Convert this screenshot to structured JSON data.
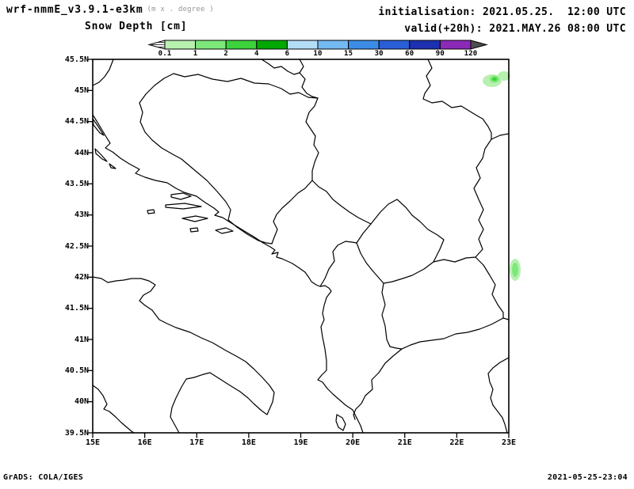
{
  "header": {
    "model": "wrf-nmmE_v3.9.1-e3km",
    "units_note": "(m x . degree )",
    "variable": "Snow Depth [cm]",
    "init": "initialisation: 2021.05.25.  12:00 UTC",
    "valid": "valid(+20h): 2021.MAY.26 08:00 UTC"
  },
  "colorbar": {
    "labels": [
      "0.1",
      "1",
      "2",
      "4",
      "6",
      "10",
      "15",
      "30",
      "60",
      "90",
      "120"
    ],
    "colors": [
      "#b8f0b0",
      "#7de87a",
      "#3cd23c",
      "#00a800",
      "#b4ddf7",
      "#74baf2",
      "#3c8ce6",
      "#2a5ed7",
      "#1c30b0",
      "#8c2ab8"
    ],
    "underflow_color": "#ffffff",
    "overflow_color": "#4d4d4d"
  },
  "axes": {
    "y_ticks": [
      "45.5N",
      "45N",
      "44.5N",
      "44N",
      "43.5N",
      "43N",
      "42.5N",
      "42N",
      "41.5N",
      "41N",
      "40.5N",
      "40N",
      "39.5N"
    ],
    "x_ticks": [
      "15E",
      "16E",
      "17E",
      "18E",
      "19E",
      "20E",
      "21E",
      "22E",
      "23E"
    ]
  },
  "map": {
    "region": "Adriatic / Balkans 15E-23E 39.5N-45.5N",
    "snow_patches": [
      {
        "name": "snow-patch-northeast",
        "approx_location": "22.7E 45.2N",
        "value_range_cm": "0.1-4"
      },
      {
        "name": "snow-patch-east-edge",
        "approx_location": "23E 42.2N",
        "value_range_cm": "0.1-2"
      }
    ]
  },
  "footer": {
    "left": "GrADS: COLA/IGES",
    "right": "2021-05-25-23:04"
  }
}
